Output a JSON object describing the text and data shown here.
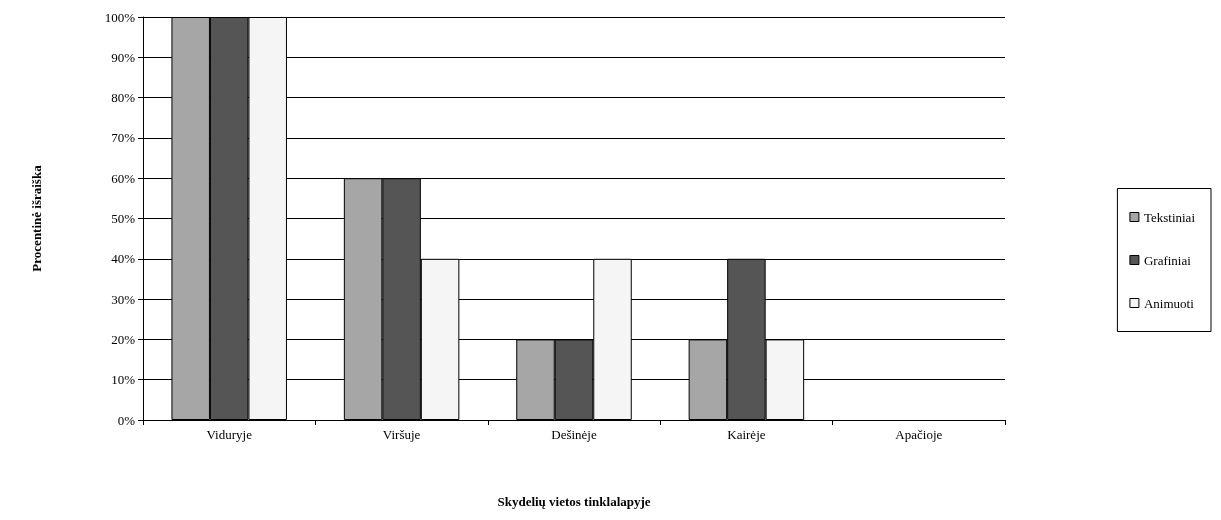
{
  "chart_data": {
    "type": "bar",
    "xlabel": "Skydelių vietos tinklalapyje",
    "ylabel": "Procentinė išraiška",
    "categories": [
      "Viduryje",
      "Viršuje",
      "Dešinėje",
      "Kairėje",
      "Apačioje"
    ],
    "series": [
      {
        "name": "Tekstiniai",
        "color": "#a6a6a6",
        "values": [
          100,
          60,
          20,
          20,
          0
        ]
      },
      {
        "name": "Grafiniai",
        "color": "#555555",
        "values": [
          100,
          60,
          20,
          40,
          0
        ]
      },
      {
        "name": "Animuoti",
        "color": "#f5f5f5",
        "values": [
          100,
          40,
          40,
          20,
          0
        ]
      }
    ],
    "ylim": [
      0,
      100
    ],
    "yticks": [
      {
        "value": 0,
        "label": "0%"
      },
      {
        "value": 10,
        "label": "10%"
      },
      {
        "value": 20,
        "label": "20%"
      },
      {
        "value": 30,
        "label": "30%"
      },
      {
        "value": 40,
        "label": "40%"
      },
      {
        "value": 50,
        "label": "50%"
      },
      {
        "value": 60,
        "label": "60%"
      },
      {
        "value": 70,
        "label": "70%"
      },
      {
        "value": 80,
        "label": "80%"
      },
      {
        "value": 90,
        "label": "90%"
      },
      {
        "value": 100,
        "label": "100%"
      }
    ],
    "grid": "y",
    "legend": "right"
  }
}
